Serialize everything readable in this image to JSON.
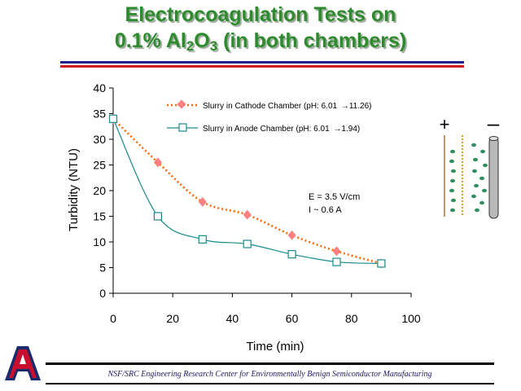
{
  "title": {
    "line1": "Electrocoagulation Tests on",
    "line2_pre": "0.1% Al",
    "line2_sub1": "2",
    "line2_mid": "O",
    "line2_sub2": "3",
    "line2_post": " (in both chambers)"
  },
  "colors": {
    "title": "#2d8a2d",
    "cathode_series": "#ff6600",
    "cathode_marker": "#ff8080",
    "anode_series": "#1a8a8a",
    "rule_navy": "#1f1f8a",
    "rule_red": "#cc1c1c"
  },
  "chart_data": {
    "type": "line",
    "xlabel": "Time (min)",
    "ylabel": "Turbidity (NTU)",
    "xlim": [
      0,
      100
    ],
    "ylim": [
      0,
      40
    ],
    "xticks": [
      0,
      20,
      40,
      60,
      80,
      100
    ],
    "yticks": [
      0,
      5,
      10,
      15,
      20,
      25,
      30,
      35,
      40
    ],
    "grid": false,
    "legend_position": "top-right",
    "series": [
      {
        "name": "Slurry in Cathode Chamber (pH: 6.01 → 11.26)",
        "legend_pre": "Slurry in Cathode Chamber (pH: 6.01 ",
        "legend_post": "11.26)",
        "marker": "diamond",
        "line_style": "dotted",
        "x": [
          0,
          15,
          30,
          45,
          60,
          75,
          90
        ],
        "y": [
          34,
          25.5,
          17.8,
          15.3,
          11.3,
          8.2,
          5.8
        ]
      },
      {
        "name": "Slurry in Anode Chamber (pH: 6.01 → 1.94)",
        "legend_pre": "Slurry in Anode Chamber (pH: 6.01 ",
        "legend_post": "1.94)",
        "marker": "square",
        "line_style": "solid",
        "x": [
          0,
          15,
          30,
          45,
          60,
          75,
          90
        ],
        "y": [
          34,
          15,
          10.5,
          9.6,
          7.6,
          6.1,
          5.8
        ]
      }
    ],
    "annotations": [
      "E = 3.5 V/cm",
      "I ~ 0.6 A"
    ]
  },
  "diagram": {
    "plus": "+",
    "minus": "–"
  },
  "footer": {
    "text": "NSF/SRC Engineering Research Center for Environmentally Benign Semiconductor Manufacturing",
    "logo_letter": "A"
  }
}
